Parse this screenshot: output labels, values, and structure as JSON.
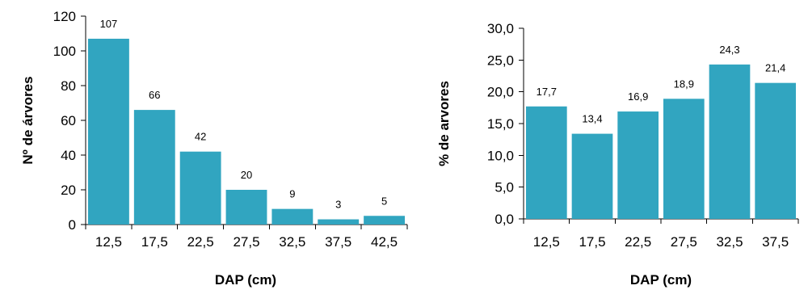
{
  "chart_data": [
    {
      "type": "bar",
      "categories": [
        "12,5",
        "17,5",
        "22,5",
        "27,5",
        "32,5",
        "37,5",
        "42,5"
      ],
      "values": [
        107,
        66,
        42,
        20,
        9,
        3,
        5
      ],
      "data_labels": [
        "107",
        "66",
        "42",
        "20",
        "9",
        "3",
        "5"
      ],
      "xlabel": "DAP (cm)",
      "ylabel": "Nº de árvores",
      "ylim": [
        0,
        120
      ],
      "yticks": [
        0,
        20,
        40,
        60,
        80,
        100,
        120
      ],
      "ytick_labels": [
        "0",
        "20",
        "40",
        "60",
        "80",
        "100",
        "120"
      ],
      "grid": false,
      "bar_color": "#31a5c0"
    },
    {
      "type": "bar",
      "categories": [
        "12,5",
        "17,5",
        "22,5",
        "27,5",
        "32,5",
        "37,5"
      ],
      "values": [
        17.7,
        13.4,
        16.9,
        18.9,
        24.3,
        21.4
      ],
      "data_labels": [
        "17,7",
        "13,4",
        "16,9",
        "18,9",
        "24,3",
        "21,4"
      ],
      "xlabel": "DAP (cm)",
      "ylabel": "% de arvores",
      "ylim": [
        0,
        30
      ],
      "yticks": [
        0,
        5,
        10,
        15,
        20,
        25,
        30
      ],
      "ytick_labels": [
        "0,0",
        "5,0",
        "10,0",
        "15,0",
        "20,0",
        "25,0",
        "30,0"
      ],
      "grid": false,
      "bar_color": "#31a5c0"
    }
  ]
}
